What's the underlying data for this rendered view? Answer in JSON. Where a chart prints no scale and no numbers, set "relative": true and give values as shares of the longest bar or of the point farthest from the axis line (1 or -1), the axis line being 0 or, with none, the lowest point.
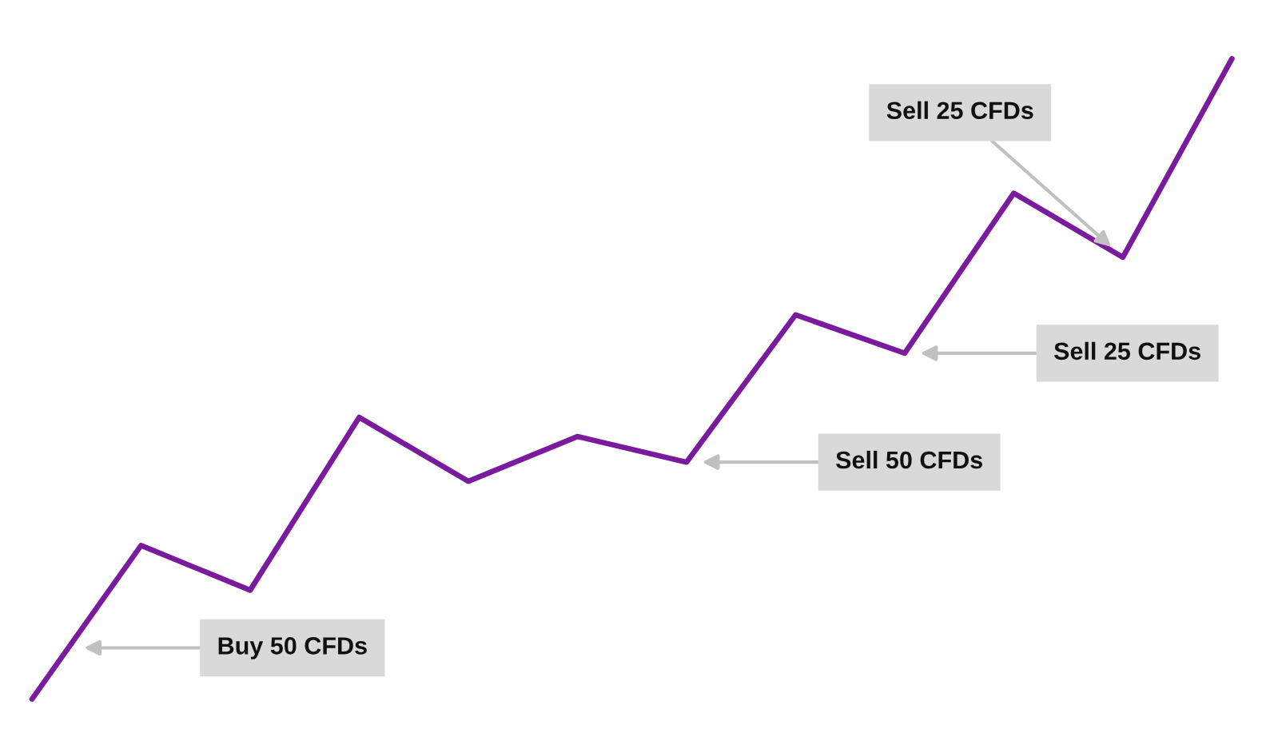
{
  "chart_data": {
    "type": "line",
    "relative": true,
    "categories": [
      null,
      null,
      null,
      null,
      null,
      null,
      null,
      null,
      null,
      null,
      null,
      null
    ],
    "series": [
      {
        "color": "#7a1b9e",
        "values": [
          0,
          0.24,
          0.17,
          0.44,
          0.34,
          0.41,
          0.37,
          0.6,
          0.54,
          0.79,
          0.69,
          1
        ]
      }
    ],
    "annotations": [
      "Buy 50 CFDs",
      "Sell 50 CFDs",
      "Sell 25 CFDs",
      "Sell 25 CFDs"
    ]
  }
}
